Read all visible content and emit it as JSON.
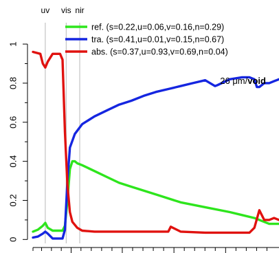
{
  "chart_data": {
    "type": "line",
    "title": "",
    "xlabel": "",
    "ylabel": "",
    "xlim": [
      0,
      1
    ],
    "ylim": [
      -0.02,
      1.12
    ],
    "grid": false,
    "legend_position": "top-right",
    "y_ticks": [
      {
        "value": 0,
        "label": "0"
      },
      {
        "value": 0.2,
        "label": "0.2"
      },
      {
        "value": 0.4,
        "label": "0.4"
      },
      {
        "value": 0.6,
        "label": "0.6"
      },
      {
        "value": 0.8,
        "label": "0.8"
      },
      {
        "value": 1,
        "label": "1"
      }
    ],
    "y_minor_ticks": [
      0.1,
      0.3,
      0.5,
      0.7,
      0.9
    ],
    "x_ticks": [
      0,
      0.035,
      0.075,
      0.115,
      0.155,
      0.195,
      0.237,
      0.279,
      0.321,
      0.363,
      0.405,
      0.447,
      0.489,
      0.531,
      0.573,
      0.615,
      0.657,
      0.699,
      0.741,
      0.783,
      0.825,
      0.867,
      0.909,
      0.951
    ],
    "x_major_ticks": [
      0.155,
      0.363,
      0.573,
      0.783
    ],
    "region_markers": [
      {
        "label": "uv",
        "x": 0.05
      },
      {
        "label": "vis",
        "x": 0.135
      },
      {
        "label": "nir",
        "x": 0.19
      }
    ],
    "annotation": {
      "text_prefix": "26 μm/",
      "text_bold": "void"
    },
    "series": [
      {
        "name": "ref.",
        "legend_label": "ref.  (s=0.22,u=0.06,v=0.16,n=0.29)",
        "color": "#2ee51d",
        "x": [
          0,
          0.02,
          0.04,
          0.05,
          0.06,
          0.08,
          0.12,
          0.13,
          0.14,
          0.15,
          0.16,
          0.17,
          0.18,
          0.2,
          0.25,
          0.3,
          0.35,
          0.4,
          0.5,
          0.6,
          0.7,
          0.8,
          0.85,
          0.9,
          0.93,
          0.96,
          1
        ],
        "y": [
          0.04,
          0.05,
          0.07,
          0.085,
          0.06,
          0.045,
          0.045,
          0.07,
          0.2,
          0.36,
          0.4,
          0.4,
          0.39,
          0.38,
          0.35,
          0.32,
          0.29,
          0.27,
          0.23,
          0.19,
          0.165,
          0.14,
          0.125,
          0.11,
          0.095,
          0.08,
          0.08
        ]
      },
      {
        "name": "tra.",
        "legend_label": "tra.  (s=0.41,u=0.01,v=0.15,n=0.67)",
        "color": "#1526e0",
        "x": [
          0,
          0.02,
          0.04,
          0.05,
          0.06,
          0.08,
          0.12,
          0.13,
          0.14,
          0.15,
          0.17,
          0.2,
          0.25,
          0.3,
          0.35,
          0.4,
          0.45,
          0.5,
          0.55,
          0.6,
          0.65,
          0.7,
          0.74,
          0.75,
          0.8,
          0.85,
          0.88,
          0.9,
          0.91,
          0.92,
          0.94,
          0.96,
          0.98,
          1
        ],
        "y": [
          0.01,
          0.015,
          0.03,
          0.04,
          0.03,
          0.005,
          0.005,
          0.05,
          0.3,
          0.47,
          0.54,
          0.59,
          0.63,
          0.66,
          0.69,
          0.71,
          0.735,
          0.755,
          0.77,
          0.785,
          0.8,
          0.815,
          0.785,
          0.79,
          0.82,
          0.83,
          0.83,
          0.82,
          0.78,
          0.78,
          0.8,
          0.8,
          0.81,
          0.82
        ]
      },
      {
        "name": "abs.",
        "legend_label": "abs.  (s=0.37,u=0.93,v=0.69,n=0.04)",
        "color": "#e0120f",
        "x": [
          0,
          0.03,
          0.04,
          0.05,
          0.06,
          0.08,
          0.11,
          0.12,
          0.13,
          0.14,
          0.15,
          0.16,
          0.18,
          0.2,
          0.25,
          0.3,
          0.4,
          0.5,
          0.55,
          0.56,
          0.6,
          0.7,
          0.8,
          0.88,
          0.9,
          0.92,
          0.94,
          0.96,
          0.98,
          1
        ],
        "y": [
          0.96,
          0.95,
          0.9,
          0.88,
          0.91,
          0.95,
          0.95,
          0.92,
          0.55,
          0.28,
          0.14,
          0.09,
          0.06,
          0.045,
          0.04,
          0.04,
          0.04,
          0.04,
          0.04,
          0.065,
          0.04,
          0.035,
          0.035,
          0.035,
          0.06,
          0.15,
          0.1,
          0.1,
          0.11,
          0.1
        ]
      }
    ]
  }
}
